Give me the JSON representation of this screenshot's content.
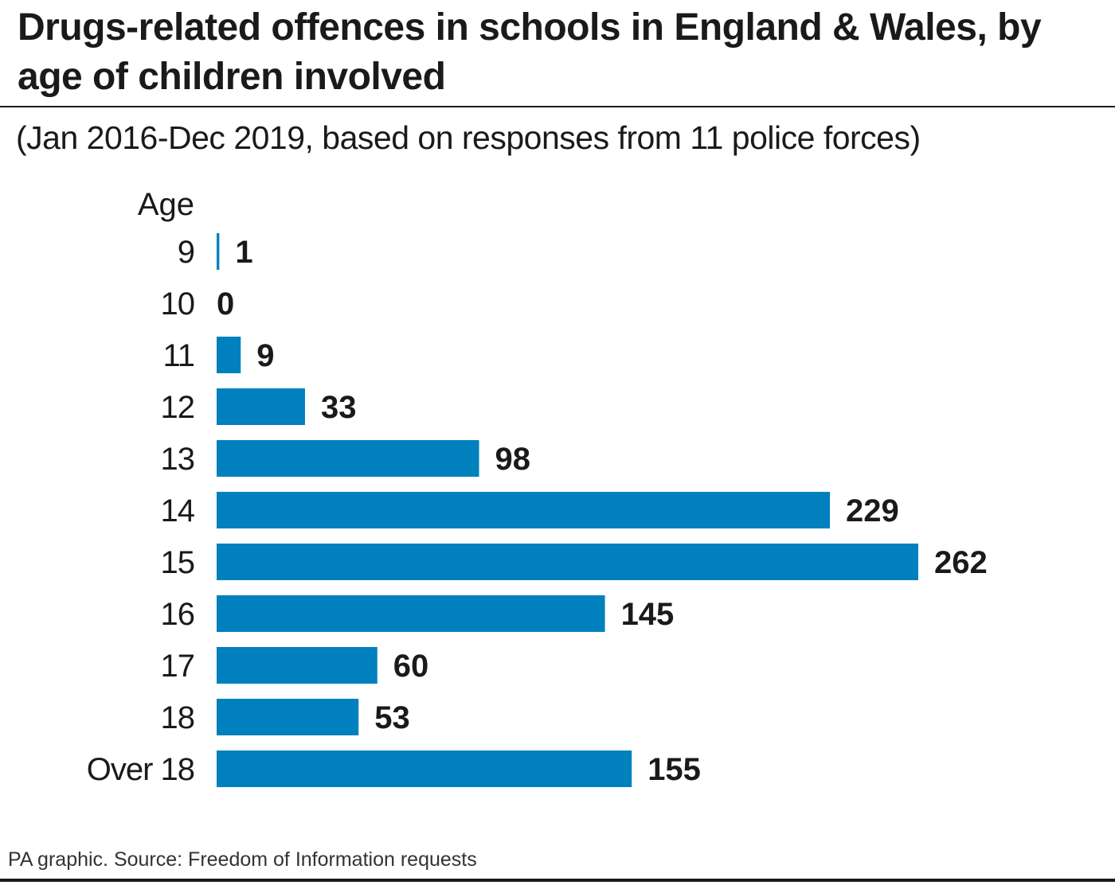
{
  "header": {
    "title": "Drugs-related offences in schools in England & Wales, by age of children involved",
    "subtitle": "(Jan 2016-Dec 2019, based on responses from 11 police forces)"
  },
  "footer": {
    "credit": "PA graphic. Source: Freedom of Information requests"
  },
  "colors": {
    "bar": "#0080bd",
    "text": "#1a1a1a"
  },
  "chart_data": {
    "type": "bar",
    "orientation": "horizontal",
    "title": "Drugs-related offences in schools in England & Wales, by age of children involved",
    "subtitle": "(Jan 2016-Dec 2019, based on responses from 11 police forces)",
    "ylabel": "Age",
    "xlabel": "",
    "categories": [
      "9",
      "10",
      "11",
      "12",
      "13",
      "14",
      "15",
      "16",
      "17",
      "18",
      "Over 18"
    ],
    "values": [
      1,
      0,
      9,
      33,
      98,
      229,
      262,
      145,
      60,
      53,
      155
    ],
    "value_labels": [
      "1",
      "0",
      "9",
      "33",
      "98",
      "229",
      "262",
      "145",
      "60",
      "53",
      "155"
    ],
    "xlim": [
      0,
      262
    ],
    "grid": false,
    "legend": "none",
    "data_labels": "end of bar"
  }
}
